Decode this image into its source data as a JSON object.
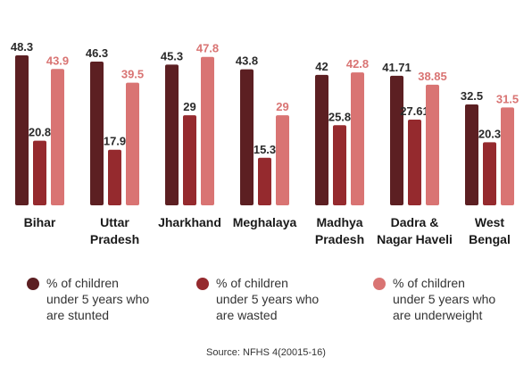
{
  "chart_data": {
    "type": "bar",
    "categories": [
      [
        "Bihar"
      ],
      [
        "Uttar",
        "Pradesh"
      ],
      [
        "Jharkhand"
      ],
      [
        "Meghalaya"
      ],
      [
        "Madhya",
        "Pradesh"
      ],
      [
        "Dadra &",
        "Nagar Haveli"
      ],
      [
        "West",
        "Bengal"
      ]
    ],
    "series": [
      {
        "name": "% of children under 5 years who are stunted",
        "color": "#5c1f22",
        "values": [
          48.3,
          46.3,
          45.3,
          43.8,
          42,
          41.71,
          32.5
        ],
        "labels": [
          "48.3",
          "46.3",
          "45.3",
          "43.8",
          "42",
          "41.71",
          "32.5"
        ]
      },
      {
        "name": "% of children under 5 years who are wasted",
        "color": "#952a2e",
        "values": [
          20.8,
          17.9,
          29,
          15.3,
          25.8,
          27.61,
          20.3
        ],
        "labels": [
          "20.8",
          "17.9",
          "29",
          "15.3",
          "25.8",
          "27.61",
          "20.3"
        ]
      },
      {
        "name": "% of children under 5 years who are underweight",
        "color": "#d97473",
        "values": [
          43.9,
          39.5,
          47.8,
          29,
          42.8,
          38.85,
          31.5
        ],
        "labels": [
          "43.9",
          "39.5",
          "47.8",
          "29",
          "42.8",
          "38.85",
          "31.5"
        ]
      }
    ],
    "ylim": [
      0,
      48.3
    ],
    "grid": false,
    "legend_position": "bottom",
    "title": "",
    "xlabel": "",
    "ylabel": ""
  },
  "legend": [
    {
      "text": "% of children\nunder 5 years who\nare stunted",
      "color": "#5c1f22"
    },
    {
      "text": "% of children\nunder 5 years who\nare wasted",
      "color": "#952a2e"
    },
    {
      "text": "% of children\nunder 5 years who\nare underweight",
      "color": "#d97473"
    }
  ],
  "source": "Source: NFHS 4(20015-16)"
}
